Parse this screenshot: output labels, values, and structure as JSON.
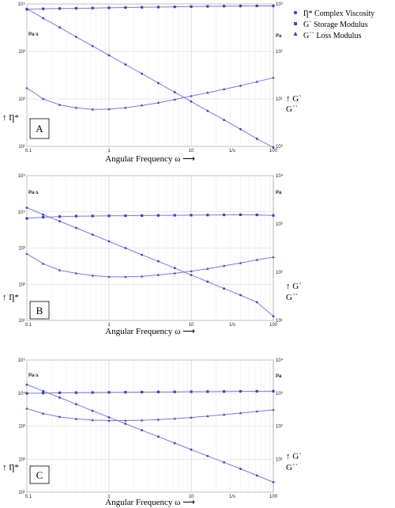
{
  "legend": {
    "complex_viscosity": "Ƞ* Complex Viscosity",
    "storage_modulus": "G` Storage Modulus",
    "loss_modulus": "G`` Loss Modulus"
  },
  "colors": {
    "series": "#3f3fcf",
    "line": "#7a7ae6",
    "grid": "#e3e3e3",
    "frame": "#9a9a9a"
  },
  "chart_data": [
    {
      "type": "line",
      "panel_label": "A",
      "xlabel": "Angular Frequency ω ⟶",
      "ylabel_left": "↑ Ƞ*",
      "ylabel_right_1": "↑ G`",
      "ylabel_right_2": "G``",
      "unit_left": "Pa·s",
      "unit_right": "Pa",
      "x_scale": "log",
      "y_scale": "log",
      "xlim": [
        0.1,
        100
      ],
      "ylim_left": [
        10,
        10000
      ],
      "ylim_right": [
        1,
        1000
      ],
      "x_ticks": [
        "0.1",
        "1",
        "10",
        "1/s",
        "100"
      ],
      "y_ticks_left": [
        "10¹",
        "10²",
        "10³",
        "10⁴"
      ],
      "y_ticks_right": [
        "10⁰",
        "10¹",
        "10²",
        "10³"
      ],
      "x": [
        0.1,
        0.158,
        0.251,
        0.398,
        0.631,
        1.0,
        1.585,
        2.512,
        3.981,
        6.31,
        10.0,
        15.85,
        25.12,
        39.81,
        63.1,
        100
      ],
      "series": [
        {
          "marker": "square",
          "axis": "right",
          "values": [
            770,
            790,
            800,
            810,
            820,
            830,
            840,
            850,
            860,
            870,
            880,
            890,
            900,
            905,
            910,
            910
          ]
        },
        {
          "marker": "circle",
          "axis": "left",
          "values": [
            7900,
            5000,
            3200,
            2030,
            1300,
            830,
            530,
            340,
            216,
            138,
            88,
            56,
            36,
            23,
            14.5,
            9.5
          ]
        },
        {
          "marker": "triangle",
          "axis": "right",
          "values": [
            17,
            10,
            7.5,
            6.5,
            6.0,
            6.1,
            6.5,
            7.3,
            8.3,
            9.7,
            11.5,
            13.5,
            16,
            19,
            23,
            28
          ]
        }
      ]
    },
    {
      "type": "line",
      "panel_label": "B",
      "xlabel": "Angular Frequency ω ⟶",
      "ylabel_left": "↑ Ƞ*",
      "ylabel_right_1": "↑ G`",
      "ylabel_right_2": "G``",
      "unit_left": "Pa·s",
      "unit_right": "Pa",
      "x_scale": "log",
      "y_scale": "log",
      "xlim": [
        0.1,
        100
      ],
      "ylim_left": [
        10,
        100000
      ],
      "ylim_right": [
        10,
        10000
      ],
      "x_ticks": [
        "0.1",
        "1",
        "10",
        "1/s",
        "100"
      ],
      "y_ticks_left": [
        "10¹",
        "10²",
        "10³",
        "10⁴",
        "10⁵"
      ],
      "y_ticks_right": [
        "10¹",
        "10²",
        "10³",
        "10⁴"
      ],
      "x": [
        0.1,
        0.158,
        0.251,
        0.398,
        0.631,
        1.0,
        1.585,
        2.512,
        3.981,
        6.31,
        10.0,
        15.85,
        25.12,
        39.81,
        63.1,
        100
      ],
      "series": [
        {
          "marker": "square",
          "axis": "right",
          "values": [
            1300,
            1380,
            1420,
            1450,
            1460,
            1470,
            1480,
            1490,
            1500,
            1510,
            1520,
            1530,
            1540,
            1550,
            1540,
            1500
          ]
        },
        {
          "marker": "circle",
          "axis": "left",
          "values": [
            13000,
            8400,
            5500,
            3600,
            2350,
            1530,
            1000,
            650,
            430,
            280,
            180,
            118,
            76,
            50,
            32,
            13
          ]
        },
        {
          "marker": "triangle",
          "axis": "right",
          "values": [
            240,
            150,
            110,
            95,
            85,
            80,
            80,
            82,
            88,
            95,
            105,
            118,
            135,
            155,
            180,
            205
          ]
        }
      ]
    },
    {
      "type": "line",
      "panel_label": "C",
      "xlabel": "Angular Frequency ω ⟶",
      "ylabel_left": "↑ Ƞ*",
      "ylabel_right_1": "↑ G`",
      "ylabel_right_2": "G``",
      "unit_left": "Pa·s",
      "unit_right": "Pa",
      "x_scale": "log",
      "y_scale": "log",
      "xlim": [
        0.1,
        100
      ],
      "ylim_left": [
        10,
        100000
      ],
      "ylim_right": [
        1,
        10000
      ],
      "x_ticks": [
        "0.1",
        "1",
        "10",
        "1/s",
        "100"
      ],
      "y_ticks_left": [
        "10¹",
        "10²",
        "10³",
        "10⁴",
        "10⁵"
      ],
      "y_ticks_right": [
        "10¹",
        "10²",
        "10³",
        "10⁴"
      ],
      "x": [
        0.1,
        0.158,
        0.251,
        0.398,
        0.631,
        1.0,
        1.585,
        2.512,
        3.981,
        6.31,
        10.0,
        15.85,
        25.12,
        39.81,
        63.1,
        100
      ],
      "series": [
        {
          "marker": "square",
          "axis": "right",
          "values": [
            980,
            1000,
            1020,
            1030,
            1040,
            1050,
            1060,
            1070,
            1080,
            1090,
            1100,
            1110,
            1120,
            1130,
            1135,
            1140
          ]
        },
        {
          "marker": "circle",
          "axis": "left",
          "values": [
            18000,
            11500,
            7300,
            4600,
            2900,
            1850,
            1180,
            750,
            480,
            305,
            195,
            124,
            80,
            51,
            32,
            20
          ]
        },
        {
          "marker": "triangle",
          "axis": "right",
          "values": [
            340,
            240,
            190,
            165,
            152,
            147,
            147,
            150,
            157,
            168,
            182,
            200,
            222,
            248,
            278,
            310
          ]
        }
      ]
    }
  ]
}
